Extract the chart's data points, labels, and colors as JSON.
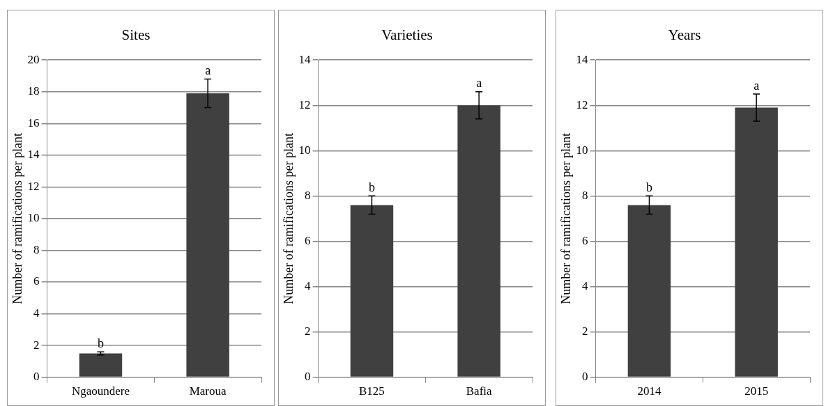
{
  "chart_data": [
    {
      "type": "bar",
      "title": "Sites",
      "ylabel": "Number of ramifications per plant",
      "categories": [
        "Ngaoundere",
        "Maroua"
      ],
      "values": [
        1.5,
        17.9
      ],
      "errors": [
        0.1,
        0.9
      ],
      "color": "#404040",
      "ylim": [
        0,
        20
      ],
      "yticks": [
        0,
        2,
        4,
        6,
        8,
        10,
        12,
        14,
        16,
        18,
        20
      ],
      "grid": "y",
      "legend": false,
      "annotations": [
        {
          "text": "b",
          "x": "Ngaoundere",
          "y": 1.6
        },
        {
          "text": "a",
          "x": "Maroua",
          "y": 18.8
        }
      ]
    },
    {
      "type": "bar",
      "title": "Varieties",
      "ylabel": "Number of ramifications per plant",
      "categories": [
        "B125",
        "Bafia"
      ],
      "values": [
        7.6,
        12.0
      ],
      "errors": [
        0.4,
        0.6
      ],
      "color": "#404040",
      "ylim": [
        0,
        14
      ],
      "yticks": [
        0,
        2,
        4,
        6,
        8,
        10,
        12,
        14
      ],
      "grid": "y",
      "legend": false,
      "annotations": [
        {
          "text": "b",
          "x": "B125",
          "y": 8.0
        },
        {
          "text": "a",
          "x": "Bafia",
          "y": 12.6
        }
      ]
    },
    {
      "type": "bar",
      "title": "Years",
      "ylabel": "Number of ramifications per plant",
      "categories": [
        "2014",
        "2015"
      ],
      "values": [
        7.6,
        11.9
      ],
      "errors": [
        0.4,
        0.6
      ],
      "color": "#404040",
      "ylim": [
        0,
        14
      ],
      "yticks": [
        0,
        2,
        4,
        6,
        8,
        10,
        12,
        14
      ],
      "grid": "y",
      "legend": false,
      "annotations": [
        {
          "text": "b",
          "x": "2014",
          "y": 8.0
        },
        {
          "text": "a",
          "x": "2015",
          "y": 12.5
        }
      ]
    }
  ]
}
